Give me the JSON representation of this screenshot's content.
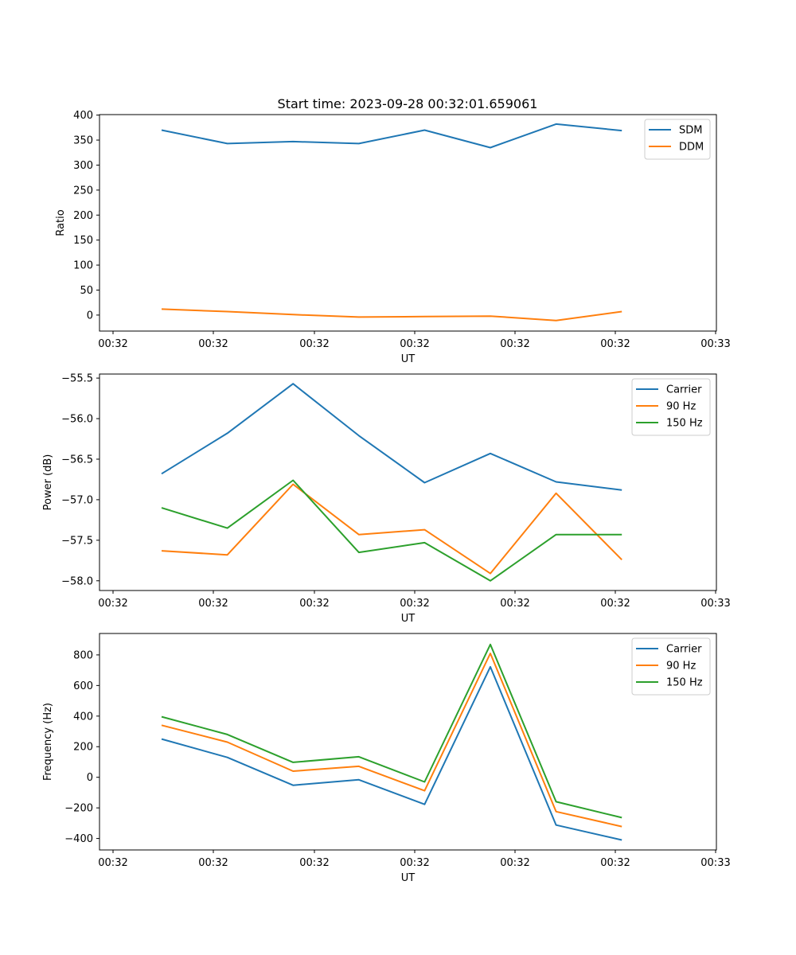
{
  "figure_title": "Start time: 2023-09-28 00:32:01.659061",
  "chart_data": [
    {
      "type": "line",
      "title": "Start time: 2023-09-28 00:32:01.659061",
      "xlabel": "UT",
      "ylabel": "Ratio",
      "x_tick_labels": [
        "00:32",
        "00:32",
        "00:32",
        "00:32",
        "00:32",
        "00:32",
        "00:33"
      ],
      "y_ticks": [
        0,
        50,
        100,
        150,
        200,
        250,
        300,
        350,
        400
      ],
      "y_tick_labels": [
        "0",
        "50",
        "100",
        "150",
        "200",
        "250",
        "300",
        "350",
        "400"
      ],
      "ylim": [
        -32,
        401
      ],
      "legend_position": "top-right",
      "grid": false,
      "x_index": [
        1,
        2,
        3,
        4,
        5,
        6,
        7,
        8
      ],
      "series": [
        {
          "name": "SDM",
          "color": "#1f77b4",
          "values": [
            370,
            343,
            347,
            343,
            370,
            335,
            382,
            369
          ]
        },
        {
          "name": "DDM",
          "color": "#ff7f0e",
          "values": [
            12,
            7,
            1,
            -4,
            -3,
            -2,
            -11,
            7
          ]
        }
      ]
    },
    {
      "type": "line",
      "title": "",
      "xlabel": "UT",
      "ylabel": "Power (dB)",
      "x_tick_labels": [
        "00:32",
        "00:32",
        "00:32",
        "00:32",
        "00:32",
        "00:32",
        "00:33"
      ],
      "y_ticks": [
        -58.0,
        -57.5,
        -57.0,
        -56.5,
        -56.0,
        -55.5
      ],
      "y_tick_labels": [
        "−58.0",
        "−57.5",
        "−57.0",
        "−56.5",
        "−56.0",
        "−55.5"
      ],
      "ylim": [
        -58.12,
        -55.45
      ],
      "legend_position": "top-right",
      "grid": false,
      "x_index": [
        1,
        2,
        3,
        4,
        5,
        6,
        7,
        8
      ],
      "series": [
        {
          "name": "Carrier",
          "color": "#1f77b4",
          "values": [
            -56.68,
            -56.18,
            -55.57,
            -56.21,
            -56.79,
            -56.43,
            -56.78,
            -56.88
          ]
        },
        {
          "name": "90 Hz",
          "color": "#ff7f0e",
          "values": [
            -57.63,
            -57.68,
            -56.81,
            -57.43,
            -57.37,
            -57.91,
            -56.92,
            -57.74
          ]
        },
        {
          "name": "150 Hz",
          "color": "#2ca02c",
          "values": [
            -57.1,
            -57.35,
            -56.76,
            -57.65,
            -57.53,
            -58.0,
            -57.43,
            -57.43
          ]
        }
      ]
    },
    {
      "type": "line",
      "title": "",
      "xlabel": "UT",
      "ylabel": "Frequency (Hz)",
      "x_tick_labels": [
        "00:32",
        "00:32",
        "00:32",
        "00:32",
        "00:32",
        "00:32",
        "00:33"
      ],
      "y_ticks": [
        -400,
        -200,
        0,
        200,
        400,
        600,
        800
      ],
      "y_tick_labels": [
        "−400",
        "−200",
        "0",
        "200",
        "400",
        "600",
        "800"
      ],
      "ylim": [
        -475,
        940
      ],
      "legend_position": "top-right",
      "grid": false,
      "x_index": [
        1,
        2,
        3,
        4,
        5,
        6,
        7,
        8
      ],
      "series": [
        {
          "name": "Carrier",
          "color": "#1f77b4",
          "values": [
            250,
            130,
            -52,
            -16,
            -177,
            722,
            -312,
            -410
          ]
        },
        {
          "name": "90 Hz",
          "color": "#ff7f0e",
          "values": [
            340,
            230,
            40,
            72,
            -88,
            810,
            -224,
            -322
          ]
        },
        {
          "name": "150 Hz",
          "color": "#2ca02c",
          "values": [
            396,
            280,
            98,
            134,
            -30,
            868,
            -160,
            -264
          ]
        }
      ]
    }
  ]
}
